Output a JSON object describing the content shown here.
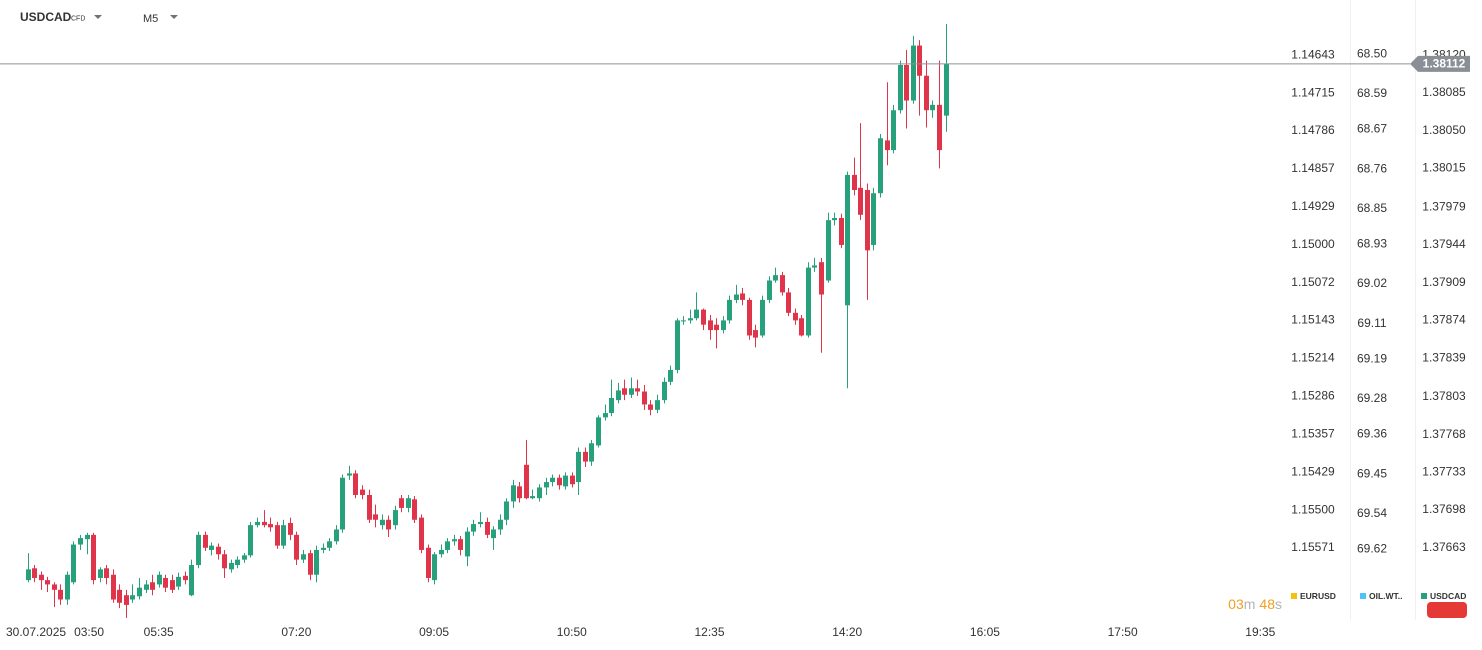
{
  "chart_data": {
    "type": "candlestick",
    "symbol": "USDCAD",
    "symbol_type": "CFD",
    "timeframe": "M5",
    "date": "30.07.2025",
    "up_color": "#26a17b",
    "down_color": "#e0344b",
    "x": [
      235,
      240,
      245,
      250,
      255,
      260,
      265,
      270,
      275,
      280,
      285,
      290,
      295,
      300,
      305,
      310,
      315,
      320,
      325,
      330,
      335,
      340,
      345,
      350,
      355,
      360,
      365,
      370,
      375,
      380,
      385,
      390,
      395,
      400,
      405,
      410,
      415,
      420,
      425,
      430,
      435,
      440,
      445,
      450,
      455,
      460,
      465,
      470,
      475,
      480,
      485,
      490,
      495,
      500,
      505,
      510,
      515,
      520,
      525,
      530,
      535,
      540,
      545,
      550,
      555,
      560,
      565,
      570,
      575,
      580,
      585,
      590,
      595,
      600,
      605,
      610,
      615,
      620,
      625,
      630,
      635,
      640,
      645,
      650,
      655,
      660,
      665,
      670,
      675,
      680,
      685,
      690,
      695,
      700,
      705,
      710,
      715,
      720,
      725,
      730,
      735,
      740,
      745,
      750,
      755,
      760,
      765,
      770,
      775,
      780,
      785,
      790,
      795,
      800,
      805,
      810,
      815,
      820,
      825,
      830,
      835,
      840,
      845,
      850,
      855,
      860,
      865,
      870,
      875,
      880,
      885,
      890,
      895,
      900,
      905,
      910,
      915,
      920,
      925,
      930,
      935
    ],
    "open": [
      1.37633,
      1.37644,
      1.37638,
      1.37633,
      1.37629,
      1.37624,
      1.37615,
      1.37631,
      1.37666,
      1.37671,
      1.37675,
      1.37635,
      1.37644,
      1.37638,
      1.37624,
      1.37619,
      1.37615,
      1.37618,
      1.37624,
      1.37631,
      1.37629,
      1.37635,
      1.37633,
      1.37627,
      1.37637,
      1.37619,
      1.37647,
      1.37675,
      1.37661,
      1.37664,
      1.37657,
      1.37643,
      1.37647,
      1.37652,
      1.37656,
      1.37684,
      1.37687,
      1.37685,
      1.37684,
      1.37665,
      1.37686,
      1.37675,
      1.37652,
      1.37658,
      1.37638,
      1.37661,
      1.37663,
      1.37669,
      1.3768,
      1.3773,
      1.37732,
      1.37717,
      1.37712,
      1.37694,
      1.37684,
      1.37689,
      1.37684,
      1.37709,
      1.377,
      1.37708,
      1.37691,
      1.37663,
      1.37633,
      1.37657,
      1.37661,
      1.37669,
      1.37671,
      1.37655,
      1.37678,
      1.37685,
      1.37687,
      1.37672,
      1.3768,
      1.37689,
      1.37706,
      1.3772,
      1.3774,
      1.37709,
      1.37709,
      1.37719,
      1.37724,
      1.37728,
      1.3772,
      1.3773,
      1.37724,
      1.37752,
      1.37743,
      1.37758,
      1.37784,
      1.37788,
      1.378,
      1.37811,
      1.37805,
      1.37811,
      1.37808,
      1.37796,
      1.37791,
      1.378,
      1.37817,
      1.37828,
      1.37873,
      1.37874,
      1.37876,
      1.37884,
      1.37874,
      1.3787,
      1.37865,
      1.37874,
      1.37893,
      1.37899,
      1.37893,
      1.37865,
      1.3786,
      1.37893,
      1.37911,
      1.37916,
      1.379,
      1.37881,
      1.37876,
      1.3786,
      1.37923,
      1.37928,
      1.37911,
      1.37967,
      1.37969,
      1.37888,
      1.38009,
      1.37997,
      1.37995,
      1.37944,
      1.37992,
      1.38041,
      1.38032,
      1.38069,
      1.38111,
      1.38078,
      1.38129,
      1.38101,
      1.38069,
      1.38074,
      1.38064
    ],
    "high": [
      1.37658,
      1.37647,
      1.37641,
      1.37636,
      1.37631,
      1.37629,
      1.37641,
      1.37669,
      1.37675,
      1.37677,
      1.37677,
      1.37645,
      1.37647,
      1.37643,
      1.37629,
      1.37624,
      1.37629,
      1.37635,
      1.37633,
      1.37638,
      1.37641,
      1.37638,
      1.37638,
      1.3764,
      1.37641,
      1.37652,
      1.37678,
      1.37678,
      1.37668,
      1.37667,
      1.37661,
      1.37652,
      1.37655,
      1.37658,
      1.37687,
      1.37691,
      1.37698,
      1.37691,
      1.37687,
      1.37689,
      1.37691,
      1.37678,
      1.37661,
      1.37661,
      1.37665,
      1.37667,
      1.37672,
      1.37684,
      1.37731,
      1.37739,
      1.37735,
      1.37721,
      1.37717,
      1.37703,
      1.37694,
      1.37693,
      1.37702,
      1.37712,
      1.37712,
      1.37711,
      1.37694,
      1.37666,
      1.37659,
      1.37666,
      1.37672,
      1.37675,
      1.37674,
      1.37682,
      1.37689,
      1.37696,
      1.37691,
      1.37683,
      1.37694,
      1.37709,
      1.37726,
      1.37724,
      1.37763,
      1.37717,
      1.37722,
      1.37728,
      1.37731,
      1.37731,
      1.37733,
      1.37733,
      1.37756,
      1.37756,
      1.37763,
      1.37786,
      1.37796,
      1.37819,
      1.37816,
      1.37819,
      1.37821,
      1.37819,
      1.37814,
      1.378,
      1.37805,
      1.37821,
      1.37832,
      1.37876,
      1.37878,
      1.37884,
      1.379,
      1.37885,
      1.37879,
      1.37876,
      1.37878,
      1.37897,
      1.37907,
      1.37904,
      1.37895,
      1.3787,
      1.37897,
      1.37915,
      1.37923,
      1.37919,
      1.37904,
      1.37885,
      1.37879,
      1.37928,
      1.37932,
      1.37932,
      1.37974,
      1.37974,
      1.37973,
      1.38012,
      1.38025,
      1.38057,
      1.38001,
      1.37997,
      1.38047,
      1.38095,
      1.38074,
      1.38115,
      1.38125,
      1.38138,
      1.38134,
      1.38115,
      1.38078,
      1.38115,
      1.38149
    ],
    "low": [
      1.37631,
      1.37631,
      1.37624,
      1.37622,
      1.37608,
      1.3761,
      1.3761,
      1.37629,
      1.37661,
      1.37657,
      1.37629,
      1.37631,
      1.37629,
      1.37612,
      1.37607,
      1.37598,
      1.37612,
      1.37615,
      1.37621,
      1.37619,
      1.37626,
      1.37622,
      1.37621,
      1.37624,
      1.37629,
      1.37618,
      1.37644,
      1.3766,
      1.37656,
      1.37652,
      1.37635,
      1.3764,
      1.37644,
      1.37649,
      1.37654,
      1.37682,
      1.37682,
      1.37678,
      1.37662,
      1.37662,
      1.3767,
      1.37647,
      1.37649,
      1.37633,
      1.37631,
      1.37658,
      1.3766,
      1.37666,
      1.37677,
      1.37726,
      1.37709,
      1.37708,
      1.37686,
      1.37682,
      1.3768,
      1.37673,
      1.3768,
      1.37696,
      1.37696,
      1.37686,
      1.37658,
      1.37631,
      1.37629,
      1.37654,
      1.37658,
      1.37665,
      1.37656,
      1.37646,
      1.37674,
      1.37682,
      1.37672,
      1.37661,
      1.37675,
      1.37684,
      1.377,
      1.37705,
      1.37708,
      1.37708,
      1.37706,
      1.37712,
      1.3772,
      1.37717,
      1.37717,
      1.37719,
      1.37712,
      1.37738,
      1.37739,
      1.37756,
      1.37781,
      1.37785,
      1.37797,
      1.378,
      1.37802,
      1.37804,
      1.37791,
      1.37786,
      1.37788,
      1.37797,
      1.37814,
      1.37825,
      1.3787,
      1.37871,
      1.37874,
      1.37865,
      1.37856,
      1.37848,
      1.37862,
      1.37871,
      1.3789,
      1.37888,
      1.37856,
      1.37849,
      1.37858,
      1.3789,
      1.37909,
      1.37897,
      1.37878,
      1.3787,
      1.37859,
      1.37858,
      1.37919,
      1.37844,
      1.37909,
      1.37962,
      1.37941,
      1.37811,
      1.3799,
      1.37967,
      1.37893,
      1.37939,
      1.37988,
      1.38018,
      1.38029,
      1.38066,
      1.38052,
      1.38075,
      1.38064,
      1.38053,
      1.38062,
      1.38015,
      1.38049
    ],
    "close": [
      1.37643,
      1.37635,
      1.37633,
      1.37629,
      1.37624,
      1.37615,
      1.37638,
      1.37666,
      1.37672,
      1.37675,
      1.37633,
      1.37643,
      1.37635,
      1.37615,
      1.37612,
      1.3761,
      1.37619,
      1.37626,
      1.37629,
      1.37624,
      1.37638,
      1.37626,
      1.37624,
      1.37636,
      1.37633,
      1.37647,
      1.37675,
      1.37663,
      1.37665,
      1.37657,
      1.37644,
      1.37649,
      1.37652,
      1.37656,
      1.37684,
      1.37687,
      1.37684,
      1.37682,
      1.37665,
      1.37684,
      1.37675,
      1.37652,
      1.37657,
      1.37638,
      1.37661,
      1.37663,
      1.37669,
      1.3768,
      1.37728,
      1.37732,
      1.37712,
      1.37712,
      1.37689,
      1.37689,
      1.37689,
      1.3768,
      1.37698,
      1.377,
      1.37709,
      1.37689,
      1.37661,
      1.37635,
      1.37657,
      1.37661,
      1.37669,
      1.37671,
      1.37661,
      1.37678,
      1.37685,
      1.37687,
      1.37675,
      1.3768,
      1.37689,
      1.37706,
      1.37721,
      1.37709,
      1.37709,
      1.37711,
      1.37719,
      1.37724,
      1.37728,
      1.37721,
      1.3773,
      1.37722,
      1.37752,
      1.37743,
      1.3776,
      1.37784,
      1.37788,
      1.37802,
      1.37809,
      1.37805,
      1.37811,
      1.37808,
      1.37796,
      1.37791,
      1.378,
      1.37817,
      1.37828,
      1.37874,
      1.37874,
      1.37876,
      1.37884,
      1.3787,
      1.37865,
      1.37865,
      1.37874,
      1.37893,
      1.37898,
      1.37893,
      1.3786,
      1.37858,
      1.37893,
      1.37911,
      1.37916,
      1.379,
      1.37881,
      1.37874,
      1.3786,
      1.37923,
      1.37925,
      1.37898,
      1.37967,
      1.37969,
      1.37944,
      1.38009,
      1.37995,
      1.37972,
      1.37939,
      1.37992,
      1.38043,
      1.38032,
      1.38069,
      1.38111,
      1.38078,
      1.38129,
      1.38101,
      1.38069,
      1.38074,
      1.38032,
      1.38112
    ],
    "xlim": [
      214,
      1190
    ],
    "xticks": [
      {
        "value": 230,
        "label": "03:50"
      },
      {
        "value": 335,
        "label": "05:35"
      },
      {
        "value": 440,
        "label": "07:20"
      },
      {
        "value": 545,
        "label": "09:05"
      },
      {
        "value": 650,
        "label": "10:50"
      },
      {
        "value": 755,
        "label": "12:35"
      },
      {
        "value": 860,
        "label": "14:20"
      },
      {
        "value": 965,
        "label": "16:05"
      },
      {
        "value": 1070,
        "label": "17:50"
      },
      {
        "value": 1175,
        "label": "19:35"
      }
    ],
    "ylim": [
      1.37596,
      1.38162
    ],
    "yticks": [
      {
        "value": 1.3812,
        "label": "1.38120"
      },
      1.38085,
      {
        "value": 1.3805,
        "label": "1.38050"
      },
      1.38015,
      1.37979,
      1.37944,
      1.37909,
      1.37874,
      1.37839,
      1.37803,
      1.37768,
      1.37733,
      1.37698,
      1.37663
    ],
    "last_price": 1.38112,
    "compare_axes": [
      {
        "name": "EURUSD",
        "color": "#f4c20d",
        "ylim": [
          1.15707,
          1.14558
        ],
        "yticks": [
          1.14643,
          1.14715,
          1.14786,
          1.14857,
          1.14929,
          {
            "value": 1.15,
            "label": "1.15000"
          },
          1.15072,
          1.15143,
          1.15214,
          1.15286,
          1.15357,
          1.15429,
          {
            "value": 1.155,
            "label": "1.15500"
          },
          1.15571
        ]
      },
      {
        "name": "OIL.WT..",
        "color": "#4fc3f7",
        "ylim": [
          69.78,
          68.4
        ],
        "yticks": [
          {
            "value": 68.5,
            "label": "68.50"
          },
          68.59,
          68.67,
          68.76,
          68.85,
          68.93,
          69.02,
          69.11,
          69.19,
          69.28,
          69.36,
          69.45,
          69.54,
          69.62
        ]
      }
    ],
    "countdown": {
      "minutes": "03",
      "minutes_unit": "m",
      "seconds": "48",
      "seconds_unit": "s"
    }
  }
}
